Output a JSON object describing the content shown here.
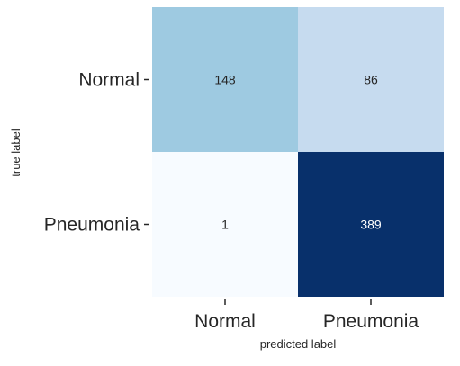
{
  "chart_data": {
    "type": "heatmap",
    "title": "",
    "xlabel": "predicted label",
    "ylabel": "true label",
    "x_categories": [
      "Normal",
      "Pneumonia"
    ],
    "y_categories": [
      "Normal",
      "Pneumonia"
    ],
    "values": [
      [
        148,
        86
      ],
      [
        1,
        389
      ]
    ],
    "colormap": "Blues",
    "colorbar": false,
    "grid": false,
    "colors": {
      "cells": [
        [
          "#9ecae1",
          "#c6dbef"
        ],
        [
          "#f7fbff",
          "#08306b"
        ]
      ],
      "text_light": "#ffffff",
      "text_dark": "#262626",
      "tick_marks": "#262626"
    }
  }
}
